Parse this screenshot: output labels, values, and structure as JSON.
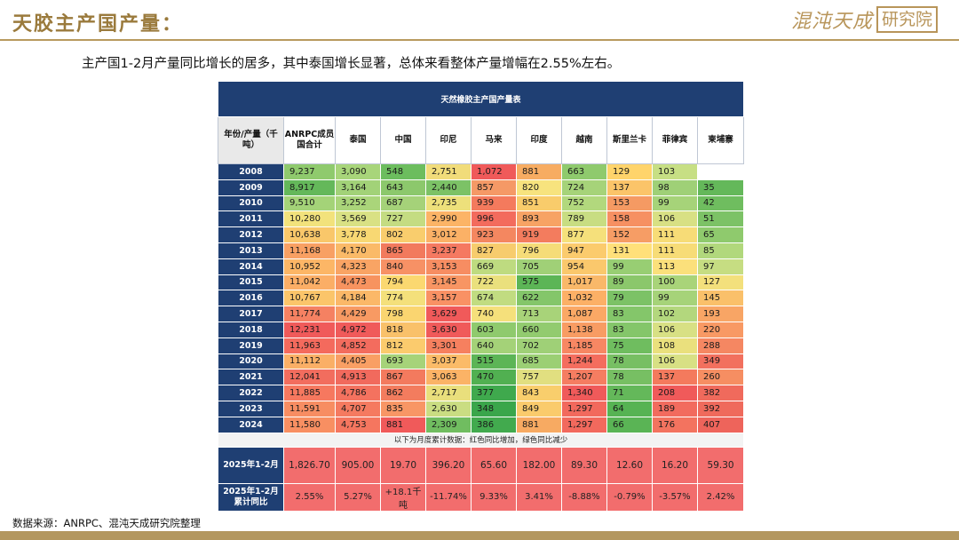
{
  "header": {
    "title": "天胶主产国产量：",
    "logo_script": "混沌天成",
    "logo_box": "研究院"
  },
  "subtitle": "主产国1-2月产量同比增长的居多，其中泰国增长显著，总体来看整体产量增幅在2.55%左右。",
  "table": {
    "title": "天然橡胶主产国产量表",
    "columns": [
      "年份/产量（千吨）",
      "ANRPC成员国合计",
      "泰国",
      "中国",
      "印尼",
      "马来",
      "印度",
      "越南",
      "斯里兰卡",
      "菲律宾",
      "柬埔寨"
    ],
    "rows": [
      {
        "year": "2008",
        "cells": [
          "9,237",
          "3,090",
          "548",
          "2,751",
          "1,072",
          "881",
          "663",
          "129",
          "103",
          ""
        ],
        "colors": [
          "#8fca6d",
          "#a8d57a",
          "#6cbd5e",
          "#f1dc7a",
          "#f05a5a",
          "#f7ac62",
          "#8fca6d",
          "#ffd46b",
          "#c7df84",
          "#ffffff"
        ]
      },
      {
        "year": "2009",
        "cells": [
          "8,917",
          "3,164",
          "643",
          "2,440",
          "857",
          "820",
          "724",
          "137",
          "98",
          "35"
        ],
        "colors": [
          "#64b85a",
          "#a2d278",
          "#8cc86c",
          "#7cc266",
          "#f59966",
          "#f7e37e",
          "#a6d379",
          "#fbc469",
          "#9fd077",
          "#64b85a"
        ]
      },
      {
        "year": "2010",
        "cells": [
          "9,510",
          "3,252",
          "687",
          "2,735",
          "939",
          "851",
          "752",
          "153",
          "99",
          "42"
        ],
        "colors": [
          "#a4d378",
          "#aad57a",
          "#a5d279",
          "#ede07b",
          "#f47a5d",
          "#f9cc6b",
          "#b2d87d",
          "#f59a63",
          "#a6d379",
          "#6fbd5f"
        ]
      },
      {
        "year": "2011",
        "cells": [
          "10,280",
          "3,569",
          "727",
          "2,990",
          "996",
          "893",
          "789",
          "158",
          "106",
          "51"
        ],
        "colors": [
          "#f2e27c",
          "#d9e184",
          "#c4dc82",
          "#fcb466",
          "#f36b5d",
          "#f7a364",
          "#c8dd82",
          "#f69062",
          "#d8e084",
          "#7cc266"
        ]
      },
      {
        "year": "2012",
        "cells": [
          "10,638",
          "3,778",
          "802",
          "3,012",
          "923",
          "919",
          "877",
          "152",
          "111",
          "65"
        ],
        "colors": [
          "#f9c76a",
          "#f8d873",
          "#f9cd6d",
          "#fbb166",
          "#f48760",
          "#f37c5e",
          "#f5e07b",
          "#f69d65",
          "#f7dc77",
          "#8fca6d"
        ]
      },
      {
        "year": "2013",
        "cells": [
          "11,168",
          "4,170",
          "865",
          "3,237",
          "827",
          "796",
          "947",
          "131",
          "111",
          "85"
        ],
        "colors": [
          "#f8a063",
          "#faba68",
          "#f27a5d",
          "#f57961",
          "#f7cc6d",
          "#f5dc78",
          "#fbcb6d",
          "#ffe07a",
          "#f7dc77",
          "#b1d87c"
        ]
      },
      {
        "year": "2014",
        "cells": [
          "10,952",
          "4,323",
          "840",
          "3,153",
          "669",
          "705",
          "954",
          "99",
          "113",
          "97"
        ],
        "colors": [
          "#fcb666",
          "#f9a464",
          "#f79165",
          "#f78d62",
          "#bedb80",
          "#a0d077",
          "#fac86c",
          "#98ce73",
          "#fbe07b",
          "#c6dd82"
        ]
      },
      {
        "year": "2015",
        "cells": [
          "11,042",
          "4,473",
          "794",
          "3,145",
          "722",
          "575",
          "1,017",
          "89",
          "100",
          "127"
        ],
        "colors": [
          "#fbae66",
          "#f7935f",
          "#fbd870",
          "#f89563",
          "#eae07d",
          "#5cb556",
          "#f9b869",
          "#8bc76b",
          "#a9d479",
          "#f3e07c"
        ]
      },
      {
        "year": "2016",
        "cells": [
          "10,767",
          "4,184",
          "774",
          "3,157",
          "674",
          "622",
          "1,032",
          "79",
          "99",
          "145"
        ],
        "colors": [
          "#fbc56a",
          "#fbb868",
          "#f4e07b",
          "#f99164",
          "#c1dc81",
          "#84c66a",
          "#fcb066",
          "#7cc266",
          "#a6d379",
          "#fac06a"
        ]
      },
      {
        "year": "2017",
        "cells": [
          "11,774",
          "4,429",
          "798",
          "3,629",
          "740",
          "713",
          "1,087",
          "83",
          "102",
          "193"
        ],
        "colors": [
          "#f58162",
          "#f89a63",
          "#fad570",
          "#f05a5a",
          "#f5e07b",
          "#a8d379",
          "#fba865",
          "#84c66a",
          "#b3d77d",
          "#f8a565"
        ]
      },
      {
        "year": "2018",
        "cells": [
          "12,231",
          "4,972",
          "818",
          "3,630",
          "603",
          "660",
          "1,138",
          "83",
          "106",
          "220"
        ],
        "colors": [
          "#f05a5a",
          "#f05a5a",
          "#f9c16a",
          "#f05a5a",
          "#8fca6d",
          "#92cb6f",
          "#f89c63",
          "#84c66a",
          "#d8e084",
          "#f89964"
        ]
      },
      {
        "year": "2019",
        "cells": [
          "11,963",
          "4,852",
          "812",
          "3,301",
          "640",
          "702",
          "1,185",
          "75",
          "108",
          "288"
        ],
        "colors": [
          "#f46a5d",
          "#f36c5e",
          "#fbcb6d",
          "#f6805f",
          "#a4d278",
          "#9fd077",
          "#f78763",
          "#6fbd5f",
          "#eae07d",
          "#f58762"
        ]
      },
      {
        "year": "2020",
        "cells": [
          "11,112",
          "4,405",
          "693",
          "3,037",
          "515",
          "685",
          "1,244",
          "78",
          "106",
          "349"
        ],
        "colors": [
          "#faaf66",
          "#f99f64",
          "#a6d379",
          "#fbbb68",
          "#5cb556",
          "#9bcf74",
          "#f46d5e",
          "#77bf63",
          "#d8e084",
          "#f2705e"
        ]
      },
      {
        "year": "2021",
        "cells": [
          "12,041",
          "4,913",
          "867",
          "3,063",
          "470",
          "757",
          "1,207",
          "78",
          "137",
          "260"
        ],
        "colors": [
          "#f26d5e",
          "#f16a5d",
          "#f37a5e",
          "#fbb366",
          "#51b051",
          "#e1df80",
          "#f57d61",
          "#77bf63",
          "#f47a5d",
          "#f68e62"
        ]
      },
      {
        "year": "2022",
        "cells": [
          "11,885",
          "4,786",
          "862",
          "2,717",
          "377",
          "843",
          "1,340",
          "71",
          "208",
          "382"
        ],
        "colors": [
          "#f6785f",
          "#f4725f",
          "#f37c5e",
          "#e9df7c",
          "#3fa94d",
          "#f9ce6c",
          "#f05a5a",
          "#64b85a",
          "#f05a5a",
          "#f06a5c"
        ]
      },
      {
        "year": "2023",
        "cells": [
          "11,591",
          "4,707",
          "835",
          "2,630",
          "348",
          "849",
          "1,297",
          "64",
          "189",
          "392"
        ],
        "colors": [
          "#f78d62",
          "#f57a60",
          "#f89665",
          "#cadd82",
          "#3aa64b",
          "#facb6c",
          "#f2695d",
          "#56b353",
          "#f26b5e",
          "#ef6a5c"
        ]
      },
      {
        "year": "2024",
        "cells": [
          "11,580",
          "4,753",
          "881",
          "2,309",
          "386",
          "881",
          "1,297",
          "66",
          "176",
          "407"
        ],
        "colors": [
          "#f88f62",
          "#f5765f",
          "#f05a5a",
          "#70bd60",
          "#42aa4e",
          "#f7aa62",
          "#f2695d",
          "#5ab455",
          "#f3735f",
          "#ee645b"
        ]
      }
    ],
    "note": "以下为月度累计数据：红色同比增加，绿色同比减少",
    "month_row": {
      "label": "2025年1-2月",
      "cells": [
        "1,826.70",
        "905.00",
        "19.70",
        "396.20",
        "65.60",
        "182.00",
        "89.30",
        "12.60",
        "16.20",
        "59.30"
      ]
    },
    "yoy_row": {
      "label_line1": "2025年1-2月",
      "label_line2": "累计同比",
      "cells": [
        "2.55%",
        "5.27%",
        "+18.1千吨",
        "-11.74%",
        "9.33%",
        "3.41%",
        "-8.88%",
        "-0.79%",
        "-3.57%",
        "2.42%"
      ]
    }
  },
  "footer": {
    "source": "数据来源：ANRPC、混沌天成研究院整理"
  },
  "colors": {
    "header_gold": "#9a7a3c",
    "table_navy": "#1f3f73",
    "increase_red": "#f26d6d",
    "decrease_green": "#64b85a",
    "footer_bar": "#b3975f"
  }
}
